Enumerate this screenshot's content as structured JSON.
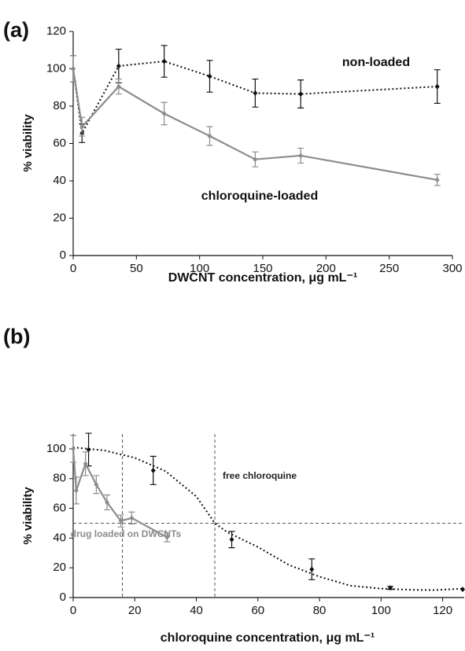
{
  "chart_data": [
    {
      "type": "line",
      "panel_label": "(a)",
      "xlabel": "DWCNT concentration, μg mL⁻¹",
      "ylabel": "% viability",
      "xlim": [
        0,
        300
      ],
      "xticks": [
        0,
        50,
        100,
        150,
        200,
        250,
        300
      ],
      "ylim": [
        0,
        120
      ],
      "yticks": [
        0,
        20,
        40,
        60,
        80,
        100,
        120
      ],
      "series": [
        {
          "name": "non-loaded",
          "color": "#111111",
          "line_style": "dotted",
          "x": [
            0,
            7,
            36,
            72,
            108,
            144,
            180,
            288
          ],
          "values": [
            100,
            65.5,
            101.5,
            104,
            96,
            87,
            86.5,
            90.5
          ],
          "errors": [
            7,
            5,
            9,
            8.5,
            8.5,
            7.5,
            7.5,
            9
          ]
        },
        {
          "name": "chloroquine-loaded",
          "color": "#8c8c8c",
          "line_style": "solid",
          "x": [
            0,
            7,
            36,
            72,
            108,
            144,
            180,
            288
          ],
          "values": [
            100,
            69,
            90.5,
            76,
            64,
            51.5,
            53.5,
            40.5
          ],
          "errors": [
            7,
            5,
            4,
            6,
            5,
            4,
            4,
            3
          ]
        }
      ]
    },
    {
      "type": "line",
      "panel_label": "(b)",
      "xlabel": "chloroquine concentration, μg mL⁻¹",
      "ylabel": "% viability",
      "xlim": [
        0,
        127
      ],
      "xticks": [
        0,
        20,
        40,
        60,
        80,
        100,
        120
      ],
      "ylim": [
        0,
        110
      ],
      "yticks": [
        0,
        20,
        40,
        60,
        80,
        100
      ],
      "hlines": [
        50
      ],
      "vlines": [
        16,
        46
      ],
      "series": [
        {
          "name": "free chloroquine",
          "color": "#111111",
          "line_style": "none",
          "x": [
            5,
            26,
            51.5,
            77.5,
            103,
            126.5
          ],
          "values": [
            99.5,
            85.5,
            39,
            19,
            6.5,
            5.5
          ],
          "errors": [
            11,
            9.5,
            5.5,
            7,
            1,
            null
          ],
          "fit": {
            "line_style": "dotted",
            "x": [
              0,
              10,
              20,
              30,
              40,
              46,
              50,
              60,
              70,
              80,
              90,
              100,
              110,
              117,
              127
            ],
            "values": [
              101,
              99,
              94,
              85,
              68,
              50,
              44,
              34,
              22,
              14,
              8,
              6,
              5.2,
              5,
              6
            ]
          }
        },
        {
          "name": "drug loaded on DWCNTs",
          "color": "#8c8c8c",
          "line_style": "solid",
          "x": [
            0,
            1,
            4,
            7.5,
            11,
            15.5,
            19,
            30.5
          ],
          "values": [
            100,
            72,
            90,
            76,
            64,
            51.5,
            53.5,
            40.5
          ],
          "errors": [
            9,
            9,
            8,
            6,
            5,
            4,
            4,
            3
          ]
        }
      ]
    }
  ]
}
